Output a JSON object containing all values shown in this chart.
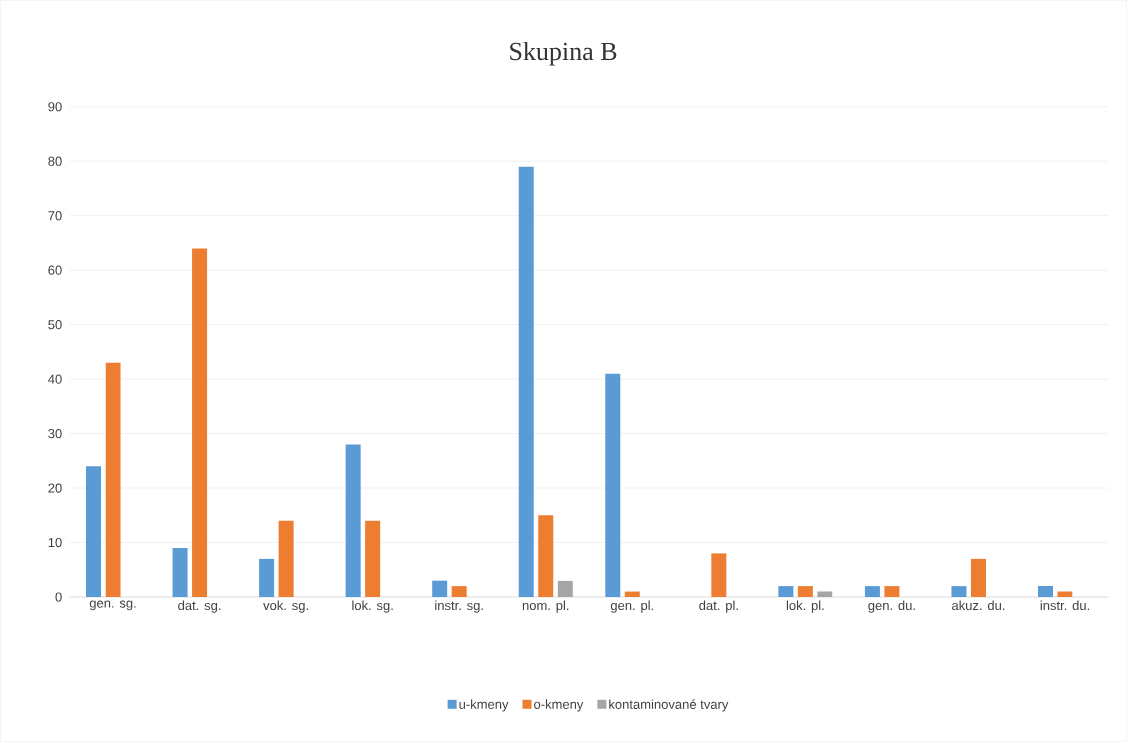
{
  "chart_data": {
    "type": "bar",
    "title": "Skupina B",
    "categories": [
      "gen. sg.",
      "dat. sg.",
      "vok. sg.",
      "lok. sg.",
      "instr. sg.",
      "nom. pl.",
      "gen. pl.",
      "dat. pl.",
      "lok. pl.",
      "gen. du.",
      "akuz. du.",
      "instr. du."
    ],
    "series": [
      {
        "name": "u-kmeny",
        "color": "#5b9bd5",
        "values": [
          24,
          9,
          7,
          28,
          3,
          79,
          41,
          null,
          2,
          2,
          2,
          2
        ]
      },
      {
        "name": "o-kmeny",
        "color": "#ed7d31",
        "values": [
          43,
          64,
          14,
          14,
          2,
          15,
          1,
          8,
          2,
          2,
          7,
          1
        ]
      },
      {
        "name": "kontaminované tvary",
        "color": "#a5a5a5",
        "values": [
          null,
          null,
          null,
          null,
          null,
          3,
          null,
          null,
          1,
          null,
          null,
          null
        ]
      }
    ],
    "ylim": [
      0,
      90
    ],
    "yticks": [
      0,
      10,
      20,
      30,
      40,
      50,
      60,
      70,
      80,
      90
    ],
    "grid": "y",
    "legend": "bottom"
  }
}
